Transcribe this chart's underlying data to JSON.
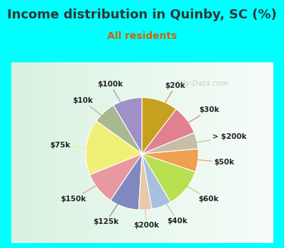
{
  "title": "Income distribution in Quinby, SC (%)",
  "subtitle": "All residents",
  "title_color": "#333333",
  "subtitle_color": "#cc6600",
  "bg_cyan": "#00ffff",
  "bg_chart_color": "#d8f0e8",
  "watermark": "City-Data.com",
  "labels": [
    "$100k",
    "$10k",
    "$75k",
    "$150k",
    "$125k",
    "$200k",
    "$40k",
    "$60k",
    "$50k",
    "> $200k",
    "$30k",
    "$20k"
  ],
  "values": [
    9,
    7,
    17,
    10,
    9,
    4,
    6,
    12,
    7,
    5,
    9,
    11
  ],
  "colors": [
    "#a090c8",
    "#a8b890",
    "#f0f078",
    "#e898a0",
    "#8088c0",
    "#e8c8a8",
    "#a8c0e0",
    "#b8e050",
    "#f0a050",
    "#c8bea8",
    "#e08090",
    "#c8a020"
  ],
  "startangle": 90,
  "label_fontsize": 7.5,
  "title_fontsize": 13,
  "subtitle_fontsize": 10
}
